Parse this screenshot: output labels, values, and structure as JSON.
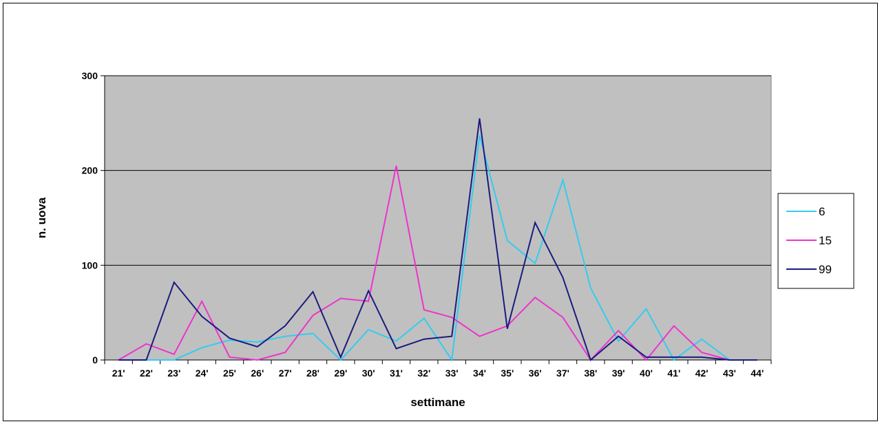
{
  "chart_data": {
    "type": "line",
    "title": "",
    "xlabel": "settimane",
    "ylabel": "n. uova",
    "ylim": [
      0,
      300
    ],
    "yticks": [
      "0",
      "100",
      "200",
      "300"
    ],
    "grid": "horizontal major gridlines",
    "legend": "right",
    "plot_background": "#c0c0c0",
    "categories": [
      "21'",
      "22'",
      "23'",
      "24'",
      "25'",
      "26'",
      "27'",
      "28'",
      "29'",
      "30'",
      "31'",
      "32'",
      "33'",
      "34'",
      "35'",
      "36'",
      "37'",
      "38'",
      "39'",
      "40'",
      "41'",
      "42'",
      "43'",
      "44'"
    ],
    "series": [
      {
        "name": "6",
        "color": "#33ccee",
        "values": [
          0,
          0,
          0,
          13,
          21,
          19,
          25,
          28,
          0,
          32,
          20,
          44,
          0,
          237,
          126,
          102,
          190,
          76,
          20,
          54,
          0,
          22,
          0,
          0
        ]
      },
      {
        "name": "15",
        "color": "#ee33cc",
        "values": [
          0,
          17,
          6,
          62,
          3,
          0,
          8,
          47,
          65,
          62,
          205,
          53,
          45,
          25,
          36,
          66,
          45,
          0,
          31,
          0,
          36,
          8,
          0,
          0
        ]
      },
      {
        "name": "99",
        "color": "#1a1a80",
        "values": [
          0,
          0,
          82,
          46,
          23,
          14,
          36,
          72,
          3,
          73,
          12,
          22,
          25,
          255,
          33,
          145,
          87,
          0,
          25,
          3,
          3,
          3,
          0,
          0
        ]
      }
    ]
  }
}
